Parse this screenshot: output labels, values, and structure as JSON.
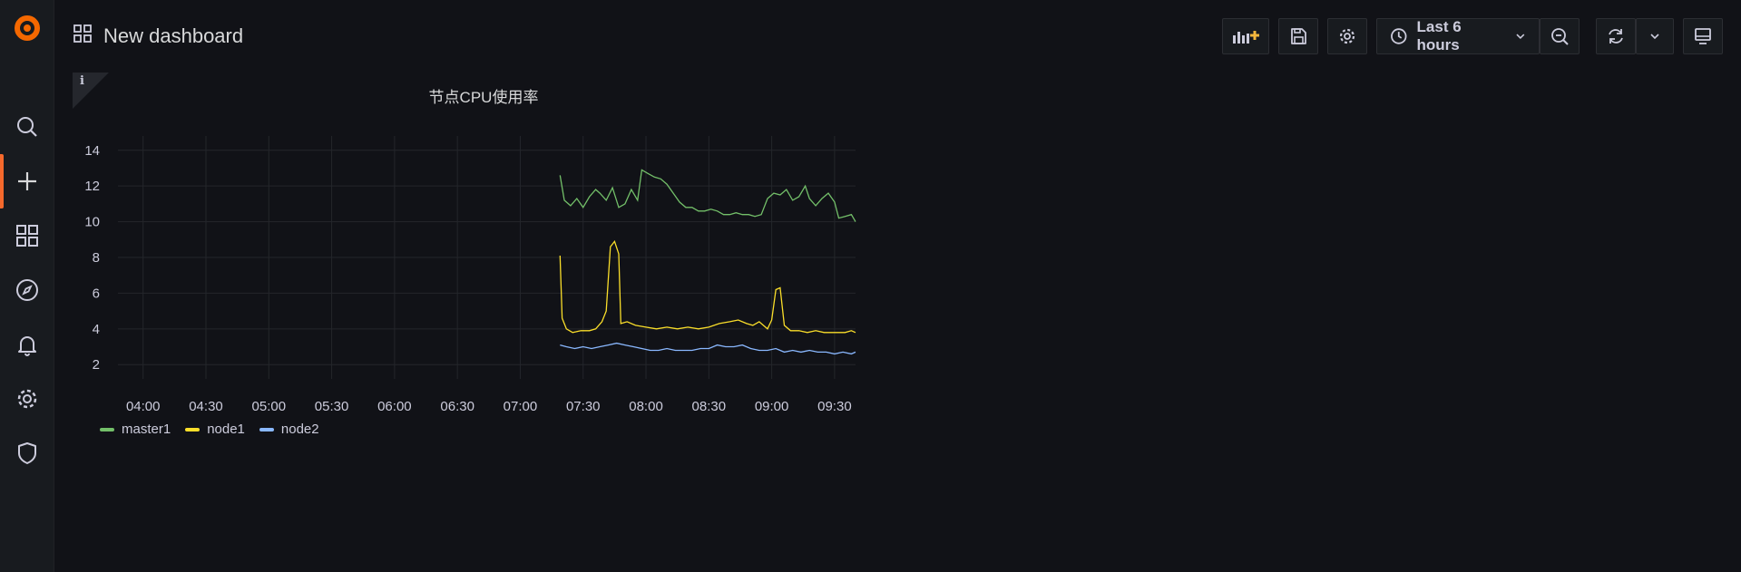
{
  "app": {
    "brand_color": "#f46800"
  },
  "sidebar": {
    "items": [
      {
        "icon": "search-icon"
      },
      {
        "icon": "plus-icon"
      },
      {
        "icon": "dashboards-icon"
      },
      {
        "icon": "compass-icon"
      },
      {
        "icon": "bell-icon"
      },
      {
        "icon": "gear-icon"
      },
      {
        "icon": "shield-icon"
      }
    ]
  },
  "header": {
    "title": "New dashboard",
    "time_range": "Last 6 hours"
  },
  "panel": {
    "title": "节点CPU使用率",
    "info_glyph": "i"
  },
  "chart_data": {
    "type": "line",
    "x_ticks": [
      "04:00",
      "04:30",
      "05:00",
      "05:30",
      "06:00",
      "06:30",
      "07:00",
      "07:30",
      "08:00",
      "08:30",
      "09:00",
      "09:30"
    ],
    "y_ticks": [
      2,
      4,
      6,
      8,
      10,
      12,
      14
    ],
    "xlim": [
      "03:48",
      "09:40"
    ],
    "ylim": [
      1.2,
      14.8
    ],
    "x_min_minutes": 228,
    "x_max_minutes": 580,
    "grid": true,
    "legend_placement": "bottom-left",
    "series": [
      {
        "name": "master1",
        "color": "#73bf69",
        "points": [
          [
            439,
            12.6
          ],
          [
            441,
            11.2
          ],
          [
            444,
            10.9
          ],
          [
            447,
            11.3
          ],
          [
            450,
            10.8
          ],
          [
            453,
            11.4
          ],
          [
            456,
            11.8
          ],
          [
            458,
            11.6
          ],
          [
            461,
            11.2
          ],
          [
            464,
            11.9
          ],
          [
            467,
            10.8
          ],
          [
            470,
            11.0
          ],
          [
            473,
            11.8
          ],
          [
            476,
            11.2
          ],
          [
            478,
            12.9
          ],
          [
            481,
            12.7
          ],
          [
            484,
            12.5
          ],
          [
            487,
            12.4
          ],
          [
            490,
            12.1
          ],
          [
            493,
            11.6
          ],
          [
            496,
            11.1
          ],
          [
            499,
            10.8
          ],
          [
            502,
            10.8
          ],
          [
            505,
            10.6
          ],
          [
            508,
            10.6
          ],
          [
            511,
            10.7
          ],
          [
            514,
            10.6
          ],
          [
            517,
            10.4
          ],
          [
            520,
            10.4
          ],
          [
            523,
            10.5
          ],
          [
            526,
            10.4
          ],
          [
            529,
            10.4
          ],
          [
            532,
            10.3
          ],
          [
            535,
            10.4
          ],
          [
            538,
            11.3
          ],
          [
            541,
            11.6
          ],
          [
            544,
            11.5
          ],
          [
            547,
            11.8
          ],
          [
            550,
            11.2
          ],
          [
            553,
            11.4
          ],
          [
            556,
            12.0
          ],
          [
            558,
            11.3
          ],
          [
            561,
            10.9
          ],
          [
            564,
            11.3
          ],
          [
            567,
            11.6
          ],
          [
            570,
            11.1
          ],
          [
            572,
            10.2
          ],
          [
            575,
            10.3
          ],
          [
            578,
            10.4
          ],
          [
            580,
            10.0
          ]
        ]
      },
      {
        "name": "node1",
        "color": "#fade2a",
        "points": [
          [
            439,
            8.1
          ],
          [
            440,
            4.6
          ],
          [
            442,
            4.0
          ],
          [
            445,
            3.8
          ],
          [
            449,
            3.9
          ],
          [
            453,
            3.9
          ],
          [
            456,
            4.0
          ],
          [
            459,
            4.4
          ],
          [
            461,
            5.0
          ],
          [
            463,
            8.6
          ],
          [
            465,
            8.9
          ],
          [
            467,
            8.2
          ],
          [
            468,
            4.3
          ],
          [
            471,
            4.4
          ],
          [
            475,
            4.2
          ],
          [
            480,
            4.1
          ],
          [
            485,
            4.0
          ],
          [
            490,
            4.1
          ],
          [
            495,
            4.0
          ],
          [
            500,
            4.1
          ],
          [
            505,
            4.0
          ],
          [
            510,
            4.1
          ],
          [
            515,
            4.3
          ],
          [
            520,
            4.4
          ],
          [
            524,
            4.5
          ],
          [
            528,
            4.3
          ],
          [
            531,
            4.2
          ],
          [
            534,
            4.4
          ],
          [
            536,
            4.2
          ],
          [
            538,
            4.0
          ],
          [
            540,
            4.5
          ],
          [
            542,
            6.2
          ],
          [
            544,
            6.3
          ],
          [
            546,
            4.2
          ],
          [
            549,
            3.9
          ],
          [
            553,
            3.9
          ],
          [
            557,
            3.8
          ],
          [
            561,
            3.9
          ],
          [
            565,
            3.8
          ],
          [
            569,
            3.8
          ],
          [
            572,
            3.8
          ],
          [
            575,
            3.8
          ],
          [
            578,
            3.9
          ],
          [
            580,
            3.8
          ]
        ]
      },
      {
        "name": "node2",
        "color": "#8ab8ff",
        "points": [
          [
            439,
            3.1
          ],
          [
            442,
            3.0
          ],
          [
            446,
            2.9
          ],
          [
            450,
            3.0
          ],
          [
            454,
            2.9
          ],
          [
            458,
            3.0
          ],
          [
            462,
            3.1
          ],
          [
            466,
            3.2
          ],
          [
            470,
            3.1
          ],
          [
            474,
            3.0
          ],
          [
            478,
            2.9
          ],
          [
            482,
            2.8
          ],
          [
            486,
            2.8
          ],
          [
            490,
            2.9
          ],
          [
            494,
            2.8
          ],
          [
            498,
            2.8
          ],
          [
            502,
            2.8
          ],
          [
            506,
            2.9
          ],
          [
            510,
            2.9
          ],
          [
            514,
            3.1
          ],
          [
            518,
            3.0
          ],
          [
            522,
            3.0
          ],
          [
            526,
            3.1
          ],
          [
            530,
            2.9
          ],
          [
            534,
            2.8
          ],
          [
            538,
            2.8
          ],
          [
            542,
            2.9
          ],
          [
            546,
            2.7
          ],
          [
            550,
            2.8
          ],
          [
            554,
            2.7
          ],
          [
            558,
            2.8
          ],
          [
            562,
            2.7
          ],
          [
            566,
            2.7
          ],
          [
            570,
            2.6
          ],
          [
            574,
            2.7
          ],
          [
            578,
            2.6
          ],
          [
            580,
            2.7
          ]
        ]
      }
    ]
  }
}
